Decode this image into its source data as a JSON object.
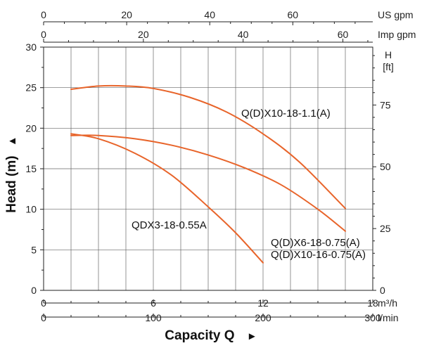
{
  "chart_data": {
    "type": "line",
    "colors": {
      "curve": "#e8642a"
    },
    "top_axes": [
      {
        "unit": "US gpm",
        "ticks": [
          "0",
          "20",
          "40",
          "60"
        ],
        "ticks_values": [
          0,
          20,
          40,
          60
        ]
      },
      {
        "unit": "Imp gpm",
        "ticks": [
          "0",
          "20",
          "40",
          "60"
        ],
        "ticks_values": [
          0,
          20,
          40,
          60
        ]
      }
    ],
    "y_left": {
      "label": "Head (m)",
      "arrow": "▲",
      "ticks": [
        "0",
        "5",
        "10",
        "15",
        "20",
        "25",
        "30"
      ],
      "ylim": [
        0,
        30
      ]
    },
    "y_right": {
      "unit_line1": "H",
      "unit_line2": "[ft]",
      "ticks": [
        "0",
        "25",
        "50",
        "75"
      ]
    },
    "x_bottom": {
      "unit": "m³/h",
      "ticks": [
        "0",
        "6",
        "12",
        "18"
      ],
      "xlim": [
        0,
        18
      ]
    },
    "x_bottom2": {
      "unit": "l/min",
      "ticks": [
        "0",
        "100",
        "200",
        "300"
      ]
    },
    "x_title": {
      "label": "Capacity Q",
      "arrow": "►"
    },
    "series": [
      {
        "name": "Q(D)X10-18-1.1(A)",
        "x": [
          1.5,
          3,
          4.5,
          6,
          8,
          10,
          12,
          14,
          16.5
        ],
        "y": [
          24.8,
          25.2,
          25.2,
          24.9,
          23.8,
          22.0,
          19.3,
          15.8,
          10.1
        ]
      },
      {
        "name": "Q(D)X6-18-0.75(A)",
        "x": [
          1.5,
          3,
          5,
          7,
          9,
          11,
          13,
          15,
          16.5
        ],
        "y": [
          19.1,
          19.1,
          18.7,
          17.9,
          16.7,
          15.1,
          13.0,
          10.0,
          7.3
        ]
      },
      {
        "name": "QDX3-18-0.55A",
        "x": [
          1.5,
          3,
          5,
          7,
          9,
          10.5,
          12
        ],
        "y": [
          19.3,
          18.7,
          16.9,
          14.2,
          10.3,
          7.1,
          3.4
        ]
      }
    ],
    "extra_labels": [
      "Q(D)X10-16-0.75(A)"
    ]
  }
}
